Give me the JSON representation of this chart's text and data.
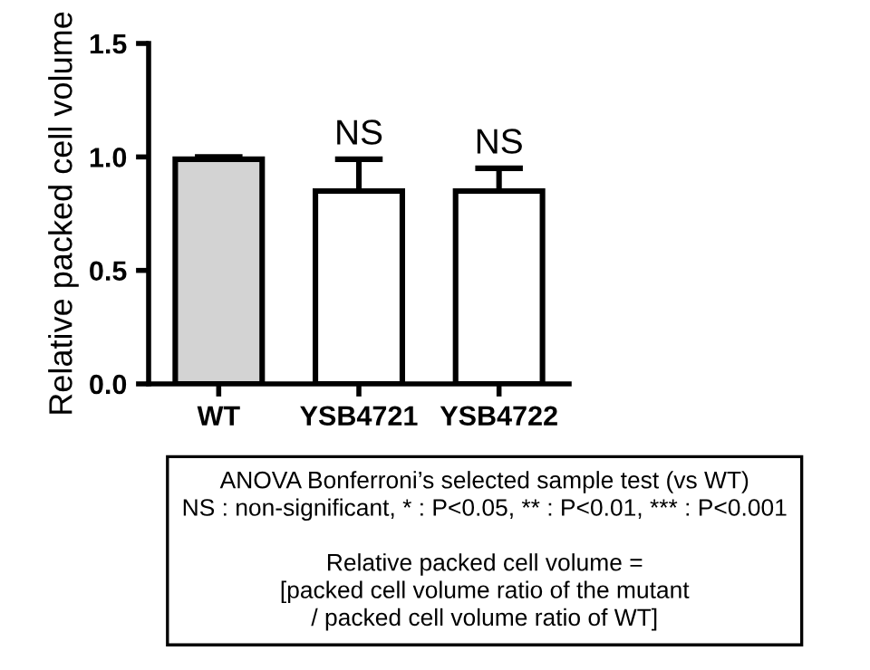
{
  "chart_data": {
    "type": "bar",
    "ylabel": "Relative packed cell volume",
    "categories": [
      "WT",
      "YSB4721",
      "YSB4722"
    ],
    "values": [
      0.99,
      0.85,
      0.85
    ],
    "colors": [
      "#d3d3d3",
      "#ffffff",
      "#ffffff"
    ],
    "errors": [
      [
        0.99,
        1.0
      ],
      [
        0.85,
        0.99
      ],
      [
        0.85,
        0.95
      ]
    ],
    "ylim": [
      0,
      1.5
    ],
    "yticks": [
      {
        "value": 0,
        "label": "0.0"
      },
      0.5,
      {
        "value": 1,
        "label": "1.0"
      },
      1.5
    ],
    "grid": false,
    "legend": false,
    "annotations": [
      {
        "text": "NS",
        "x": "YSB4721",
        "y": 0.99
      },
      {
        "text": "NS",
        "x": "YSB4722",
        "y": 0.95
      },
      "ANOVA Bonferroni’s selected sample test (vs WT)\nNS : non-significant, * : P<0.05, ** : P<0.01, *** : P<0.001\n\nRelative packed cell volume =\n[packed cell volume ratio of the mutant\n/ packed cell volume ratio of WT]"
    ]
  }
}
